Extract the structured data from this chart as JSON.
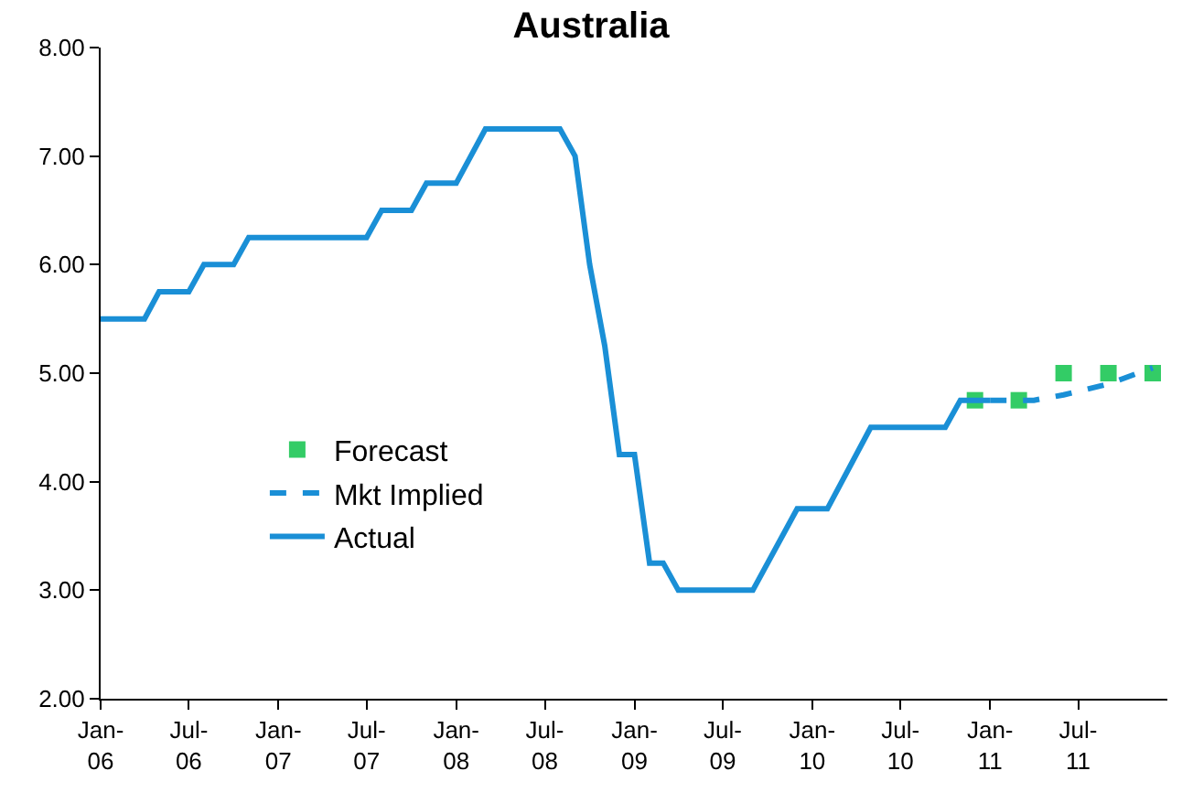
{
  "chart_data": {
    "type": "line",
    "title": "Australia",
    "xlim": [
      "2006-01-01",
      "2011-12-31"
    ],
    "xticks": [
      {
        "value": "2006-01",
        "label": "Jan-06"
      },
      {
        "value": "2006-07",
        "label": "Jul-06"
      },
      {
        "value": "2007-01",
        "label": "Jan-07"
      },
      {
        "value": "2007-07",
        "label": "Jul-07"
      },
      {
        "value": "2008-01",
        "label": "Jan-08"
      },
      {
        "value": "2008-07",
        "label": "Jul-08"
      },
      {
        "value": "2009-01",
        "label": "Jan-09"
      },
      {
        "value": "2009-07",
        "label": "Jul-09"
      },
      {
        "value": "2010-01",
        "label": "Jan-10"
      },
      {
        "value": "2010-07",
        "label": "Jul-10"
      },
      {
        "value": "2011-01",
        "label": "Jan-11"
      },
      {
        "value": "2011-07",
        "label": "Jul-11"
      }
    ],
    "ylim": [
      2,
      8
    ],
    "yticks": [
      {
        "value": 2,
        "label": "2.00"
      },
      {
        "value": 3,
        "label": "3.00"
      },
      {
        "value": 4,
        "label": "4.00"
      },
      {
        "value": 5,
        "label": "5.00"
      },
      {
        "value": 6,
        "label": "6.00"
      },
      {
        "value": 7,
        "label": "7.00"
      },
      {
        "value": 8,
        "label": "8.00"
      }
    ],
    "grid": false,
    "legend": "bottom left",
    "series": [
      {
        "name": "Forecast",
        "type": "scatter",
        "marker": "square",
        "color": "#33cc66",
        "x": [
          "2010-12",
          "2011-03",
          "2011-06",
          "2011-09",
          "2011-12"
        ],
        "values": [
          4.75,
          4.75,
          5.0,
          5.0,
          5.0
        ]
      },
      {
        "name": "Mkt Implied",
        "type": "line",
        "line_style": "dashed",
        "color": "#1a8fd6",
        "x": [
          "2011-01",
          "2011-04",
          "2011-06",
          "2011-09",
          "2011-12"
        ],
        "values": [
          4.75,
          4.75,
          4.8,
          4.9,
          5.05
        ]
      },
      {
        "name": "Actual",
        "type": "line",
        "line_style": "solid",
        "color": "#1a8fd6",
        "x": [
          "2006-01",
          "2006-04",
          "2006-05",
          "2006-07",
          "2006-08",
          "2006-10",
          "2006-11",
          "2007-07",
          "2007-08",
          "2007-10",
          "2007-11",
          "2008-01",
          "2008-03",
          "2008-08",
          "2008-09",
          "2008-10",
          "2008-11",
          "2008-12",
          "2009-01",
          "2009-02",
          "2009-03",
          "2009-04",
          "2009-09",
          "2009-12",
          "2010-02",
          "2010-05",
          "2010-10",
          "2010-11",
          "2011-01"
        ],
        "values": [
          5.5,
          5.5,
          5.75,
          5.75,
          6.0,
          6.0,
          6.25,
          6.25,
          6.5,
          6.5,
          6.75,
          6.75,
          7.25,
          7.25,
          7.0,
          6.0,
          5.25,
          4.25,
          4.25,
          3.25,
          3.25,
          3.0,
          3.0,
          3.75,
          3.75,
          4.5,
          4.5,
          4.75,
          4.75
        ]
      }
    ]
  }
}
